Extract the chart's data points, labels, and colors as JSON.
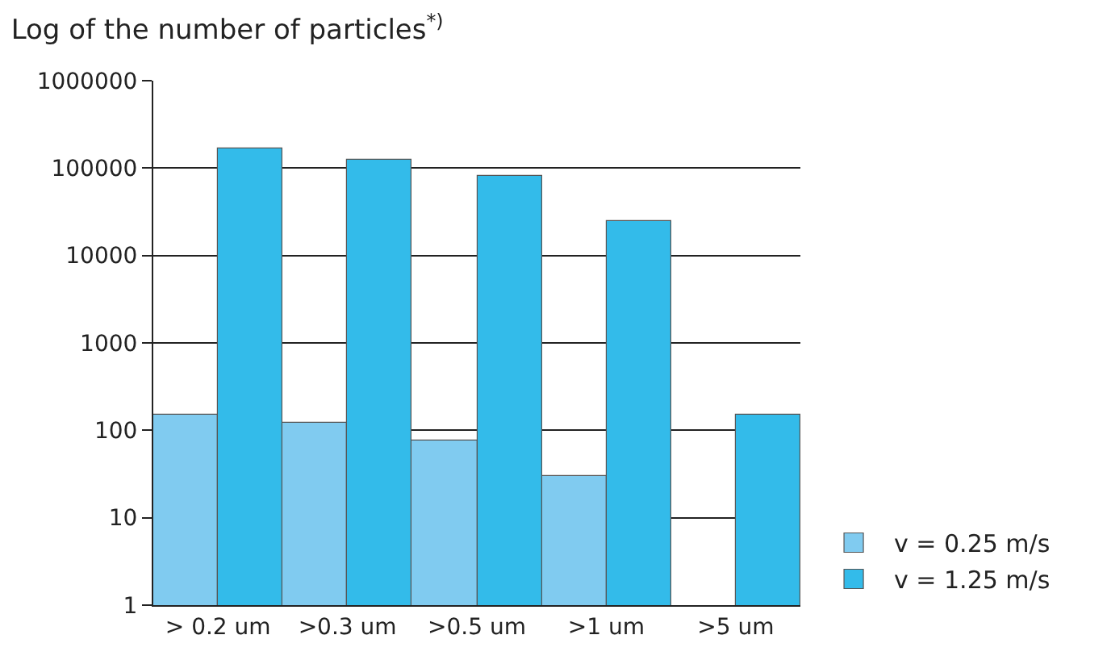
{
  "chart_data": {
    "type": "bar",
    "title": "Log of the number of particles$^{*)}$",
    "categories": [
      "> 0.2 um",
      ">0.3 um",
      ">0.5 um",
      ">1 um",
      ">5 um"
    ],
    "series": [
      {
        "name": "v = 0.25 m/s",
        "color": "#80cbf0",
        "values": [
          150,
          120,
          75,
          30,
          null
        ]
      },
      {
        "name": "v = 1.25 m/s",
        "color": "#33bbea",
        "values": [
          165000,
          127000,
          82000,
          25000,
          150
        ]
      }
    ],
    "log": true,
    "ylim": [
      1,
      1000000
    ],
    "yticks": [
      1,
      10,
      100,
      1000,
      10000,
      100000,
      1000000
    ],
    "grid": "y",
    "legend": "bottom right"
  }
}
